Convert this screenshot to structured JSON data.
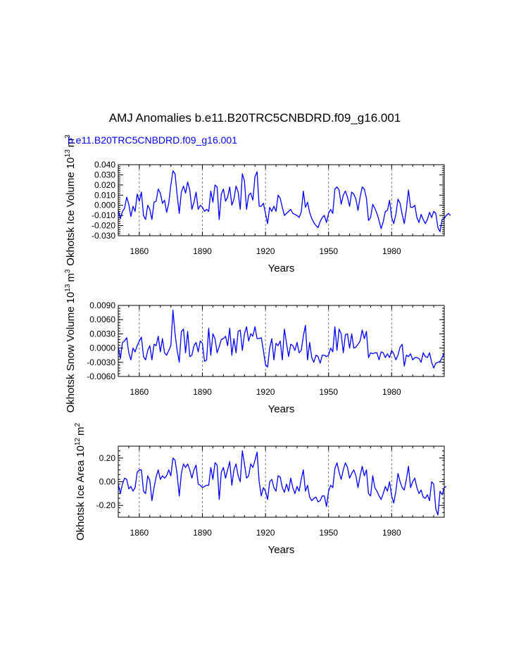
{
  "title": "AMJ Anomalies b.e11.B20TRC5CNBDRD.f09_g16.001",
  "legend": "b.e11.B20TRC5CNBDRD.f09_g16.001",
  "colors": {
    "series": "#0000ff",
    "axis": "#000000",
    "grid": "#555555"
  },
  "chart_data": [
    {
      "type": "line",
      "name": "Okhotsk Ice Volume",
      "ylabel": "Okhotsk Ice Volume 10^13 m^3",
      "ylabel_main": "Okhotsk Ice Volume 10",
      "ylabel_exp": "13",
      "ylabel_unit": "m",
      "ylabel_unit_exp": "3",
      "xlabel": "Years",
      "xlim": [
        1850,
        2005
      ],
      "ylim": [
        -0.03,
        0.04
      ],
      "xticks": [
        1860,
        1890,
        1920,
        1950,
        1980
      ],
      "xtick_labels": [
        "1860",
        "1890",
        "1920",
        "1950",
        "1980"
      ],
      "yticks": [
        -0.03,
        -0.02,
        -0.01,
        0.0,
        0.01,
        0.02,
        0.03,
        0.04
      ],
      "ytick_labels": [
        "-0.030",
        "-0.020",
        "-0.010",
        "0.000",
        "0.010",
        "0.020",
        "0.030",
        "0.040"
      ],
      "vlines": [
        1860,
        1890,
        1920,
        1950,
        1980
      ],
      "x_start": 1850,
      "values": [
        -0.005,
        -0.013,
        -0.006,
        -0.003,
        0.008,
        0.001,
        -0.011,
        -0.001,
        -0.006,
        0.011,
        0.004,
        0.013,
        -0.01,
        -0.014,
        0.0,
        -0.004,
        -0.014,
        0.003,
        0.004,
        0.016,
        0.012,
        0.002,
        0.005,
        -0.007,
        0.002,
        0.02,
        0.034,
        0.031,
        0.01,
        -0.008,
        0.013,
        0.019,
        0.012,
        0.023,
        0.015,
        -0.004,
        0.003,
        0.013,
        -0.004,
        0.0,
        -0.002,
        -0.006,
        -0.004,
        -0.006,
        0.014,
        0.003,
        0.02,
        0.018,
        -0.014,
        0.011,
        0.016,
        0.004,
        0.008,
        0.018,
        0.0,
        0.006,
        0.019,
        0.013,
        -0.004,
        0.031,
        0.024,
        -0.004,
        0.01,
        0.012,
        0.005,
        0.028,
        0.033,
        -0.001,
        -0.001,
        0.002,
        -0.008,
        -0.018,
        -0.002,
        -0.006,
        -0.001,
        -0.006,
        0.01,
        0.007,
        -0.002,
        -0.01,
        -0.008,
        -0.006,
        -0.004,
        -0.008,
        -0.009,
        -0.01,
        -0.012,
        -0.007,
        0.014,
        -0.002,
        0.003,
        -0.007,
        -0.013,
        -0.017,
        -0.02,
        -0.022,
        -0.016,
        -0.012,
        -0.01,
        -0.017,
        -0.008,
        -0.004,
        -0.008,
        0.016,
        0.018,
        0.015,
        0.001,
        0.01,
        0.014,
        0.008,
        -0.001,
        0.013,
        0.011,
        0.006,
        -0.005,
        0.008,
        0.018,
        0.016,
        0.007,
        -0.015,
        -0.012,
        0.001,
        -0.003,
        -0.008,
        -0.015,
        -0.023,
        -0.016,
        -0.006,
        -0.005,
        0.005,
        -0.012,
        -0.018,
        -0.009,
        0.006,
        0.002,
        -0.009,
        -0.018,
        -0.004,
        0.015,
        -0.002,
        -0.002,
        0.0,
        -0.012,
        -0.017,
        -0.009,
        -0.014,
        -0.018,
        -0.014,
        -0.007,
        -0.012,
        -0.006,
        -0.008,
        -0.022,
        -0.026,
        -0.014,
        -0.013,
        -0.01,
        -0.008,
        -0.01
      ]
    },
    {
      "type": "line",
      "name": "Okhotsk Snow Volume",
      "ylabel": "Okhotsk Snow Volume 10^13 m^3",
      "ylabel_main": "Okhotsk Snow Volume 10",
      "ylabel_exp": "13",
      "ylabel_unit": "m",
      "ylabel_unit_exp": "3",
      "xlabel": "Years",
      "xlim": [
        1850,
        2005
      ],
      "ylim": [
        -0.006,
        0.009
      ],
      "xticks": [
        1860,
        1890,
        1920,
        1950,
        1980
      ],
      "xtick_labels": [
        "1860",
        "1890",
        "1920",
        "1950",
        "1980"
      ],
      "yticks": [
        -0.006,
        -0.003,
        0.0,
        0.003,
        0.006,
        0.009
      ],
      "ytick_labels": [
        "-0.0060",
        "-0.0030",
        "0.0000",
        "0.0030",
        "0.0060",
        "0.0090"
      ],
      "vlines": [
        1860,
        1890,
        1920,
        1950,
        1980
      ],
      "x_start": 1850,
      "values": [
        0.0002,
        -0.0022,
        0.0012,
        0.0015,
        0.0022,
        -0.001,
        -0.0025,
        0.0,
        -0.0008,
        0.0005,
        0.0015,
        0.0023,
        -0.0018,
        -0.0025,
        -0.0005,
        0.0005,
        -0.0025,
        0.0008,
        0.0005,
        0.0025,
        -0.0008,
        0.002,
        -0.001,
        -0.0015,
        -0.0005,
        0.0005,
        0.008,
        0.003,
        -0.0005,
        -0.003,
        0.0035,
        0.004,
        -0.001,
        0.0035,
        -0.0018,
        -0.0015,
        0.0005,
        0.0012,
        -0.0008,
        0.0015,
        0.001,
        -0.0028,
        -0.0025,
        0.0042,
        -0.0015,
        0.003,
        0.002,
        -0.001,
        0.0003,
        0.0018,
        0.002,
        0.0025,
        0.0005,
        0.0042,
        -0.0015,
        0.002,
        -0.001,
        0.0035,
        0.0038,
        -0.0005,
        0.003,
        0.0045,
        0.0015,
        0.003,
        0.0025,
        0.0045,
        0.002,
        0.002,
        0.0022,
        -0.0005,
        -0.0035,
        -0.004,
        0.0,
        0.002,
        -0.0025,
        0.001,
        0.0005,
        0.0015,
        -0.0025,
        0.004,
        0.001,
        -0.0018,
        0.0008,
        0.0005,
        -0.0005,
        0.0012,
        -0.001,
        -0.0005,
        0.0025,
        0.0048,
        -0.0025,
        0.0012,
        -0.002,
        -0.003,
        -0.0015,
        -0.0018,
        -0.0032,
        -0.0015,
        -0.0015,
        -0.0018,
        -0.0015,
        0.0,
        -0.0008,
        0.0045,
        -0.0005,
        0.004,
        0.003,
        -0.001,
        0.0028,
        0.003,
        0.0,
        0.003,
        0.0,
        0.0002,
        0.0008,
        0.0015,
        0.0038,
        0.002,
        0.0035,
        -0.002,
        -0.001,
        -0.0012,
        -0.001,
        -0.001,
        -0.0025,
        -0.0008,
        -0.001,
        -0.002,
        -0.0012,
        -0.002,
        -0.0005,
        -0.0012,
        -0.0025,
        -0.0015,
        0.0002,
        0.0008,
        -0.0038,
        -0.0015,
        -0.0018,
        -0.0012,
        -0.0025,
        -0.002,
        -0.002,
        -0.0022,
        -0.003,
        -0.001,
        -0.0018,
        -0.002,
        -0.001,
        -0.003,
        -0.0042,
        -0.0032,
        -0.003,
        -0.0028,
        -0.002,
        -0.001
      ]
    },
    {
      "type": "line",
      "name": "Okhotsk Ice Area",
      "ylabel": "Okhotsk Ice Area 10^12 m^2",
      "ylabel_main": "Okhotsk Ice Area 10",
      "ylabel_exp": "12",
      "ylabel_unit": "m",
      "ylabel_unit_exp": "2",
      "xlabel": "Years",
      "xlim": [
        1850,
        2005
      ],
      "ylim": [
        -0.3,
        0.3
      ],
      "xticks": [
        1860,
        1890,
        1920,
        1950,
        1980
      ],
      "xtick_labels": [
        "1860",
        "1890",
        "1920",
        "1950",
        "1980"
      ],
      "yticks": [
        -0.2,
        0.0,
        0.2
      ],
      "ytick_labels": [
        "-0.20",
        "0.00",
        "0.20"
      ],
      "vlines": [
        1860,
        1890,
        1920,
        1950,
        1980
      ],
      "x_start": 1850,
      "values": [
        -0.02,
        -0.1,
        -0.02,
        0.03,
        0.02,
        -0.06,
        -0.04,
        -0.08,
        -0.05,
        0.08,
        0.1,
        0.1,
        -0.08,
        -0.1,
        0.05,
        0.01,
        -0.16,
        -0.05,
        0.04,
        0.1,
        0.02,
        0.05,
        0.03,
        0.05,
        0.1,
        0.05,
        0.2,
        0.18,
        0.06,
        -0.12,
        0.07,
        0.15,
        0.12,
        0.15,
        0.1,
        0.03,
        0.1,
        0.14,
        -0.02,
        -0.03,
        -0.05,
        -0.04,
        -0.03,
        -0.03,
        0.12,
        0.02,
        0.16,
        0.14,
        -0.15,
        0.08,
        0.12,
        0.03,
        0.1,
        0.17,
        -0.03,
        0.1,
        0.15,
        0.05,
        0.0,
        0.26,
        0.15,
        0.03,
        0.05,
        0.15,
        0.12,
        0.18,
        0.25,
        0.0,
        -0.12,
        -0.05,
        -0.08,
        -0.15,
        0.0,
        0.02,
        -0.05,
        -0.08,
        0.05,
        0.04,
        -0.05,
        -0.09,
        -0.02,
        -0.08,
        0.03,
        -0.05,
        -0.1,
        -0.04,
        -0.08,
        0.02,
        0.1,
        -0.08,
        -0.03,
        -0.13,
        -0.16,
        -0.14,
        -0.13,
        -0.17,
        -0.16,
        -0.12,
        -0.12,
        -0.21,
        -0.08,
        -0.03,
        -0.05,
        0.11,
        0.16,
        0.08,
        0.02,
        0.1,
        0.16,
        0.12,
        0.03,
        0.07,
        0.1,
        0.05,
        -0.05,
        0.05,
        0.13,
        0.05,
        0.1,
        -0.1,
        -0.12,
        0.05,
        -0.05,
        -0.08,
        -0.12,
        -0.15,
        -0.1,
        -0.04,
        -0.08,
        0.0,
        -0.12,
        -0.18,
        -0.08,
        0.07,
        0.0,
        -0.05,
        -0.07,
        0.02,
        0.13,
        -0.05,
        0.0,
        0.03,
        -0.05,
        -0.1,
        -0.07,
        -0.13,
        -0.14,
        -0.11,
        -0.16,
        0.0,
        -0.02,
        -0.23,
        -0.28,
        -0.08,
        -0.11,
        -0.05,
        -0.04
      ]
    }
  ]
}
